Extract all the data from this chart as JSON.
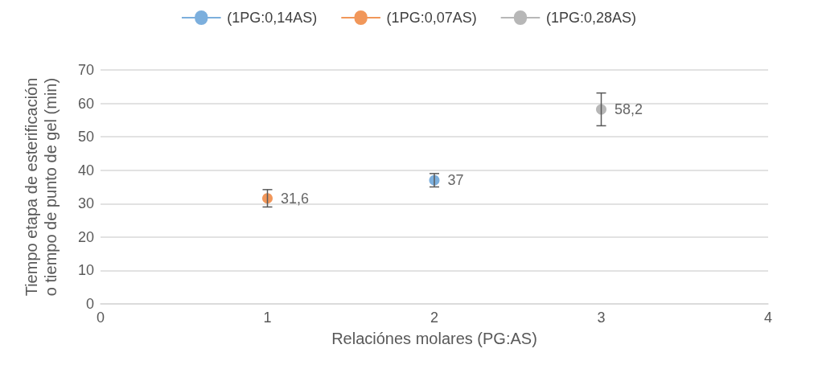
{
  "chart_data": {
    "type": "scatter",
    "xlabel": "Relaciónes molares (PG:AS)",
    "ylabel": "Tiempo etapa de esterificación o tiempo de punto de gel (min)",
    "xlim": [
      0,
      4
    ],
    "xticks": [
      0,
      1,
      2,
      3,
      4
    ],
    "ylim": [
      0,
      70
    ],
    "yticks": [
      0,
      10,
      20,
      30,
      40,
      50,
      60,
      70
    ],
    "grid": "y",
    "legend": "top",
    "marker": "circle",
    "series": [
      {
        "name": "(1PG:0,14AS)",
        "color": "#5b9bd5",
        "x": [
          2
        ],
        "values": [
          37
        ],
        "errors": [
          2
        ],
        "value_labels": [
          "37"
        ]
      },
      {
        "name": "(1PG:0,07AS)",
        "color": "#ed7d31",
        "x": [
          1
        ],
        "values": [
          31.6
        ],
        "errors": [
          2.6
        ],
        "value_labels": [
          "31,6"
        ]
      },
      {
        "name": "(1PG:0,28AS)",
        "color": "#a5a5a5",
        "x": [
          3
        ],
        "values": [
          58.2
        ],
        "errors": [
          4.9
        ],
        "value_labels": [
          "58,2"
        ]
      }
    ]
  }
}
